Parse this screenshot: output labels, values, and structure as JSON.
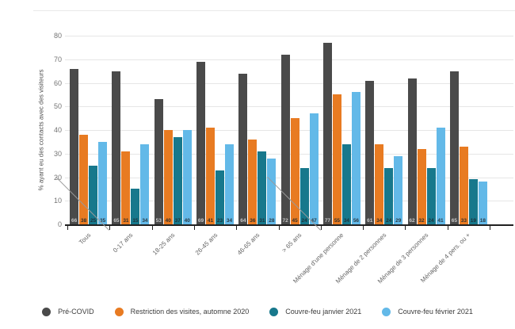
{
  "chart_data": {
    "type": "bar",
    "title": "",
    "ylabel": "% ayant eu des contacts avec des visiteurs",
    "xlabel": "",
    "ylim": [
      0,
      80
    ],
    "yticks": [
      0,
      10,
      20,
      30,
      40,
      50,
      60,
      70,
      80
    ],
    "grid": true,
    "legend_position": "bottom",
    "categories": [
      "Tous",
      "0-17 ans",
      "18-25 ans",
      "26-45 ans",
      "46-65 ans",
      "> 65 ans",
      "Ménage d'une personne",
      "Ménage de 2 personnes",
      "Ménage de 3 personnes",
      "Ménage de 4 pers. ou +"
    ],
    "separators_after_category_index": [
      0,
      5
    ],
    "series": [
      {
        "name": "Pré-COVID",
        "color": "#4a4a4a",
        "label_color": "#c8c8c8",
        "values": [
          66,
          65,
          53,
          69,
          64,
          72,
          77,
          61,
          62,
          65
        ]
      },
      {
        "name": "Restriction des visites, automne 2020",
        "color": "#e87b22",
        "label_color": "#33302c",
        "values": [
          38,
          31,
          40,
          41,
          36,
          45,
          55,
          34,
          32,
          33
        ]
      },
      {
        "name": "Couvre-feu janvier 2021",
        "color": "#17788c",
        "label_color": "#1e3038",
        "values": [
          25,
          15,
          37,
          23,
          31,
          24,
          34,
          24,
          24,
          19
        ]
      },
      {
        "name": "Couvre-feu février 2021",
        "color": "#63b9e8",
        "label_color": "#2c3b44",
        "values": [
          35,
          34,
          40,
          34,
          28,
          47,
          56,
          29,
          41,
          18
        ]
      }
    ]
  },
  "layout_text": {
    "ylabel": "% ayant eu des contacts avec des visiteurs"
  }
}
